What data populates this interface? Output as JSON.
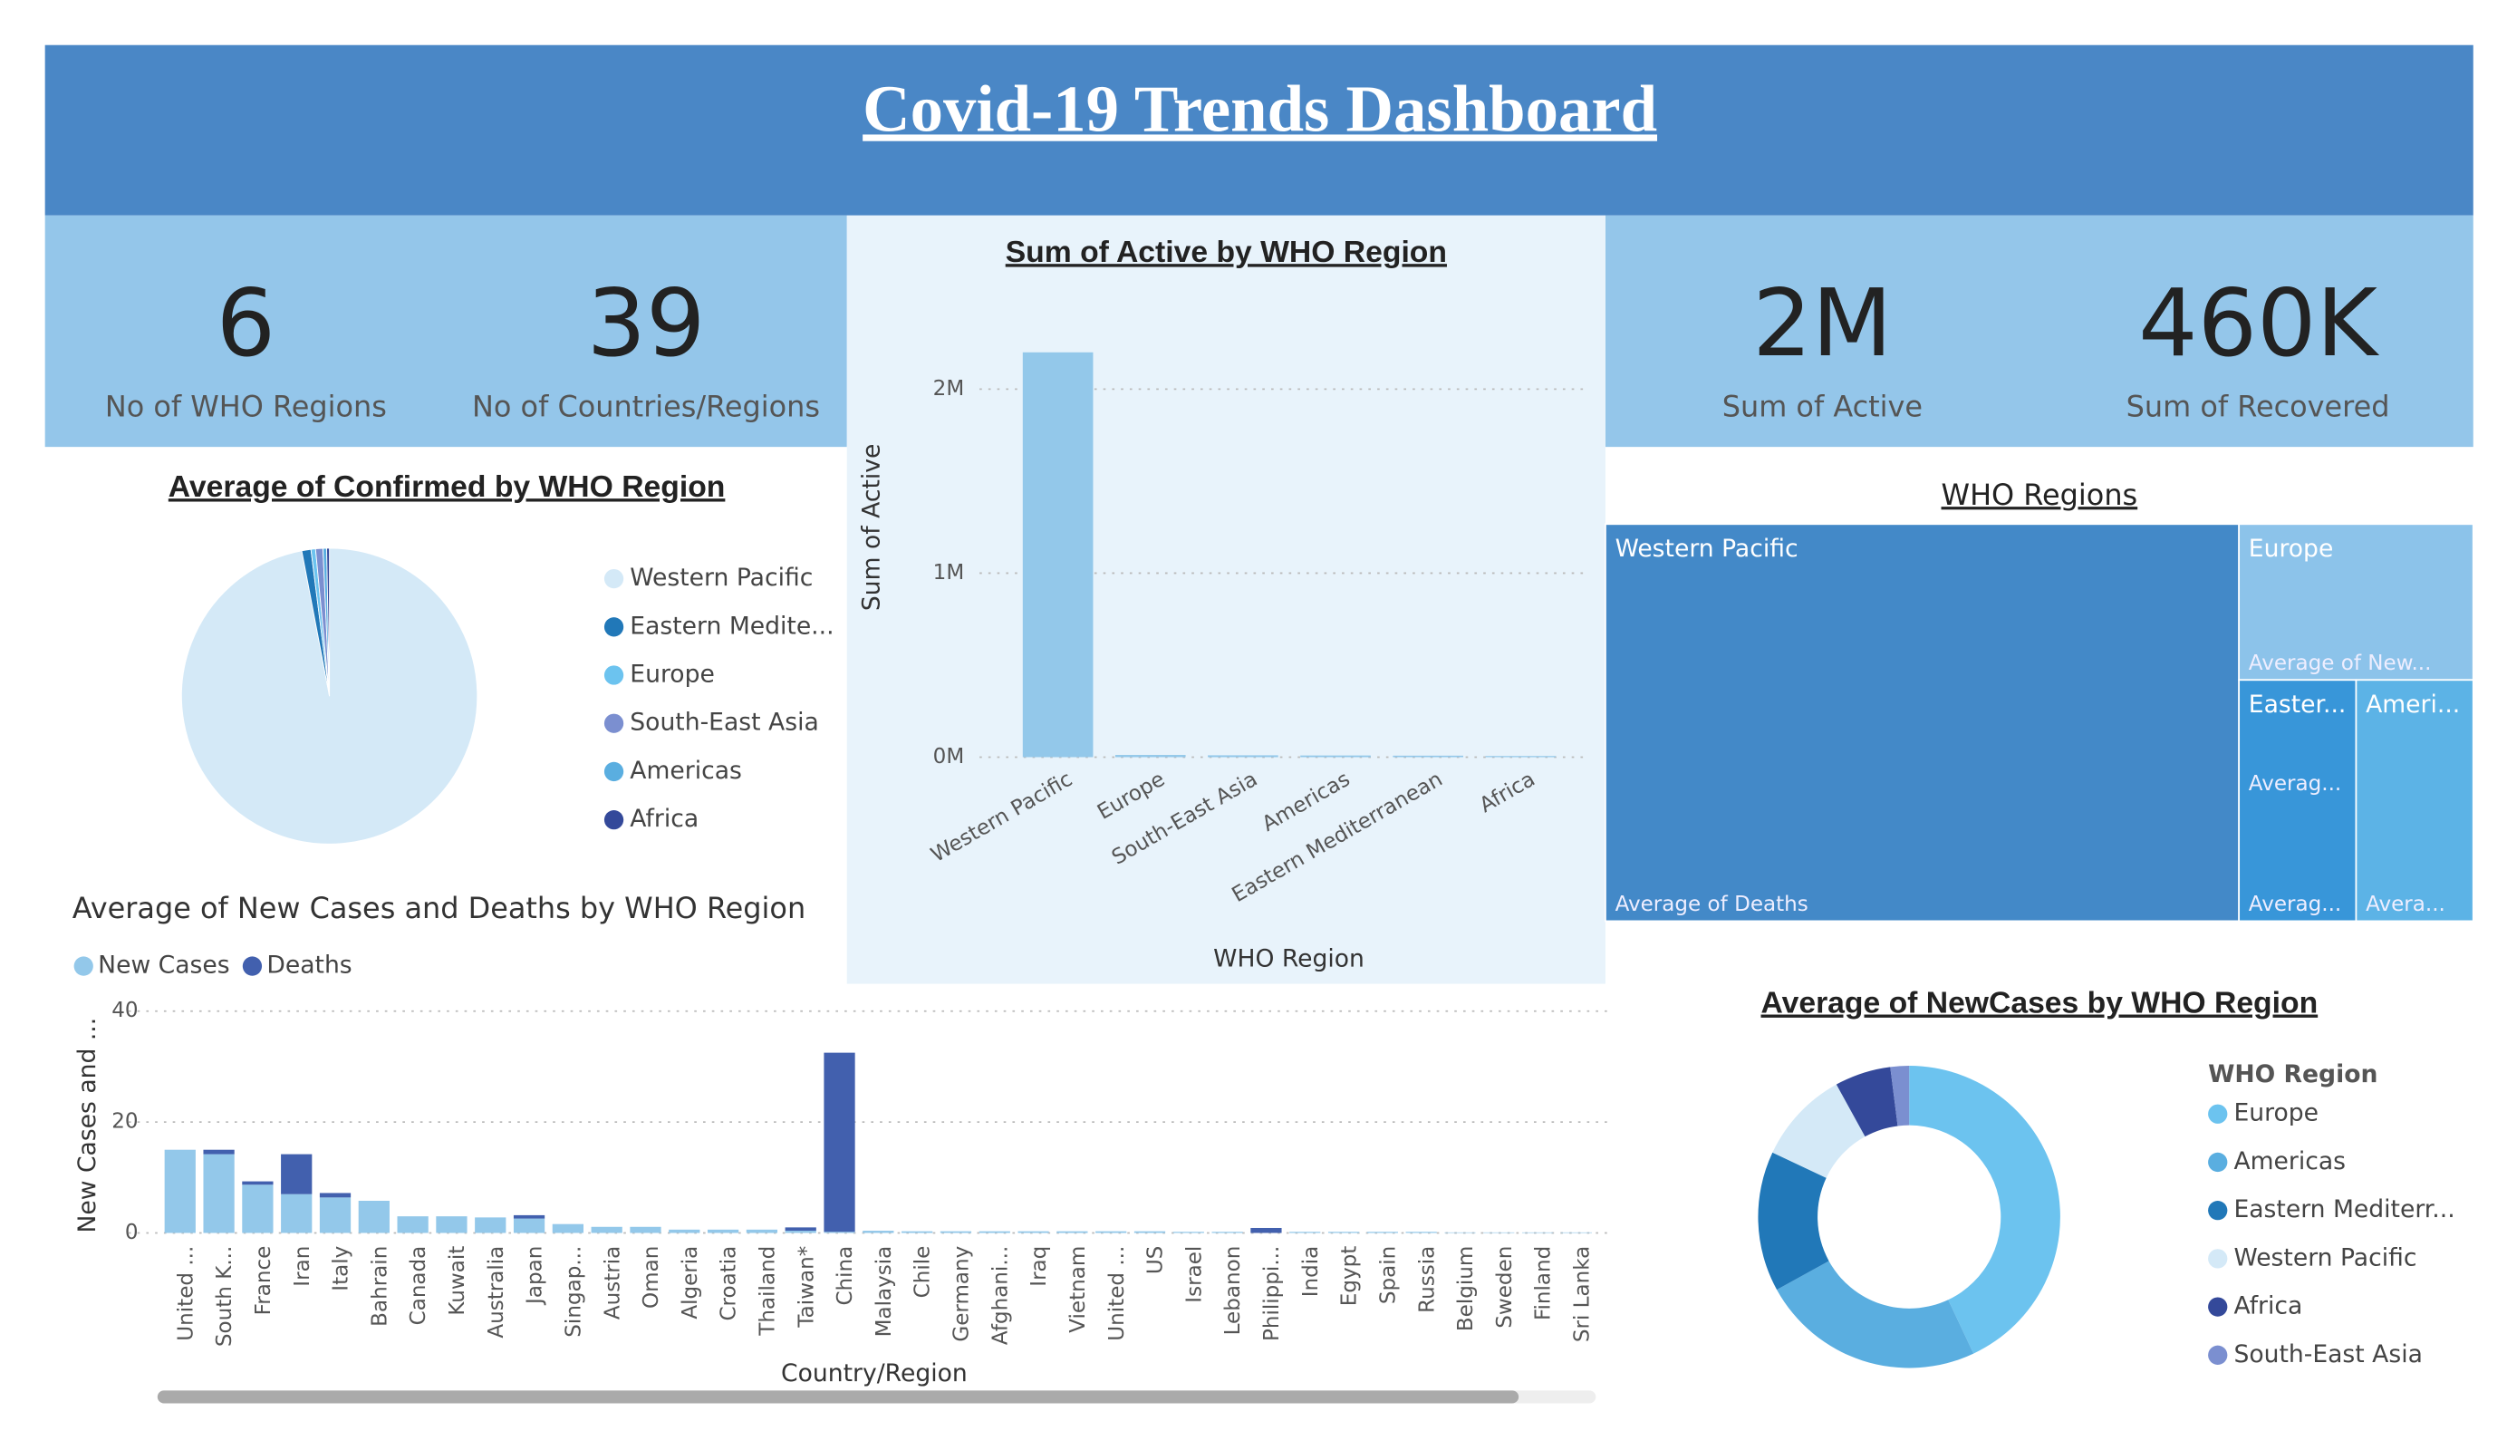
{
  "header": {
    "title": "Covid-19 Trends Dashboard"
  },
  "kpis": [
    {
      "value": 6,
      "label": "No of WHO Regions"
    },
    {
      "value": 39,
      "label": "No of Countries/Regions"
    },
    {
      "value": "2M",
      "label": "Sum of Active"
    },
    {
      "value": "460K",
      "label": "Sum of Recovered"
    }
  ],
  "chart_data": [
    {
      "type": "pie",
      "title": "Average of Confirmed by WHO Region",
      "categories": [
        "Western Pacific",
        "Eastern Medite...",
        "Europe",
        "South-East Asia",
        "Americas",
        "Africa"
      ],
      "values": [
        97,
        1,
        0.5,
        0.8,
        0.4,
        0.3
      ],
      "colors": [
        "#d4e9f7",
        "#2178b8",
        "#6cc3ef",
        "#7b8fd0",
        "#5aaee0",
        "#34499a"
      ]
    },
    {
      "type": "bar",
      "title": "Sum of Active by WHO Region",
      "categories": [
        "Western Pacific",
        "Europe",
        "South-East Asia",
        "Americas",
        "Eastern Mediterranean",
        "Africa"
      ],
      "values": [
        2200000,
        12000,
        10000,
        9000,
        8000,
        6000
      ],
      "color": "#93c8ea",
      "xlabel": "WHO Region",
      "ylabel": "Sum of Active",
      "ylim": [
        0,
        2350000
      ],
      "yticks": [
        {
          "value": 0,
          "label": "0M"
        },
        {
          "value": 1000000,
          "label": "1M"
        },
        {
          "value": 2000000,
          "label": "2M"
        }
      ],
      "grid": true
    },
    {
      "type": "stacked_bar",
      "title": "Average of New Cases and Deaths by WHO Region",
      "categories": [
        "United ...",
        "South K...",
        "France",
        "Iran",
        "Italy",
        "Bahrain",
        "Canada",
        "Kuwait",
        "Australia",
        "Japan",
        "Singap...",
        "Austria",
        "Oman",
        "Algeria",
        "Croatia",
        "Thailand",
        "Taiwan*",
        "China",
        "Malaysia",
        "Chile",
        "Germany",
        "Afghani...",
        "Iraq",
        "Vietnam",
        "United ...",
        "US",
        "Israel",
        "Lebanon",
        "Philippi...",
        "India",
        "Egypt",
        "Spain",
        "Russia",
        "Belgium",
        "Sweden",
        "Finland",
        "Sri Lanka"
      ],
      "series": [
        {
          "name": "New Cases",
          "color": "#93c8ea",
          "values": [
            15,
            14.2,
            8.7,
            7,
            6.4,
            5.8,
            3,
            3,
            2.8,
            2.6,
            1.6,
            1.1,
            1.1,
            0.6,
            0.6,
            0.6,
            0.4,
            0.2,
            0.4,
            0.3,
            0.3,
            0.3,
            0.3,
            0.3,
            0.3,
            0.3,
            0.2,
            0.2,
            0,
            0.2,
            0.2,
            0.2,
            0.2,
            0.1,
            0.1,
            0.1,
            0.1
          ]
        },
        {
          "name": "Deaths",
          "color": "#4260ae",
          "values": [
            0,
            0.8,
            0.6,
            7.2,
            0.8,
            0,
            0,
            0,
            0,
            0.6,
            0,
            0,
            0,
            0,
            0,
            0,
            0.6,
            32.3,
            0,
            0,
            0,
            0,
            0,
            0,
            0,
            0,
            0,
            0,
            0.9,
            0,
            0,
            0,
            0,
            0,
            0,
            0,
            0
          ]
        }
      ],
      "xlabel": "Country/Region",
      "ylabel": "New Cases and ...",
      "ylim": [
        0,
        40
      ],
      "yticks": [
        0,
        20,
        40
      ],
      "grid": true,
      "legend": "top-left"
    },
    {
      "type": "treemap",
      "title": "WHO Regions",
      "categories": [
        "Western Pacific",
        "Europe",
        "Easter...",
        "Ameri..."
      ],
      "values": [
        73,
        10.6,
        8.2,
        8.2
      ],
      "colors": [
        "#4389c8",
        "#8cc3ea",
        "#3896d9",
        "#5cb3e6"
      ],
      "labels": [
        [
          "Average of Deaths"
        ],
        [
          "Average of New..."
        ],
        [
          "Averag...",
          "Averag..."
        ],
        [
          "Avera..."
        ]
      ]
    },
    {
      "type": "donut",
      "title": "Average of NewCases by WHO Region",
      "legend_title": "WHO Region",
      "categories": [
        "Europe",
        "Americas",
        "Eastern Mediterr...",
        "Western Pacific",
        "Africa",
        "South-East Asia"
      ],
      "values": [
        43,
        24,
        15,
        10,
        6,
        2
      ],
      "colors": [
        "#6cc3ef",
        "#5aaee0",
        "#2178b8",
        "#d4e9f7",
        "#34499a",
        "#7b8fd0"
      ]
    }
  ]
}
